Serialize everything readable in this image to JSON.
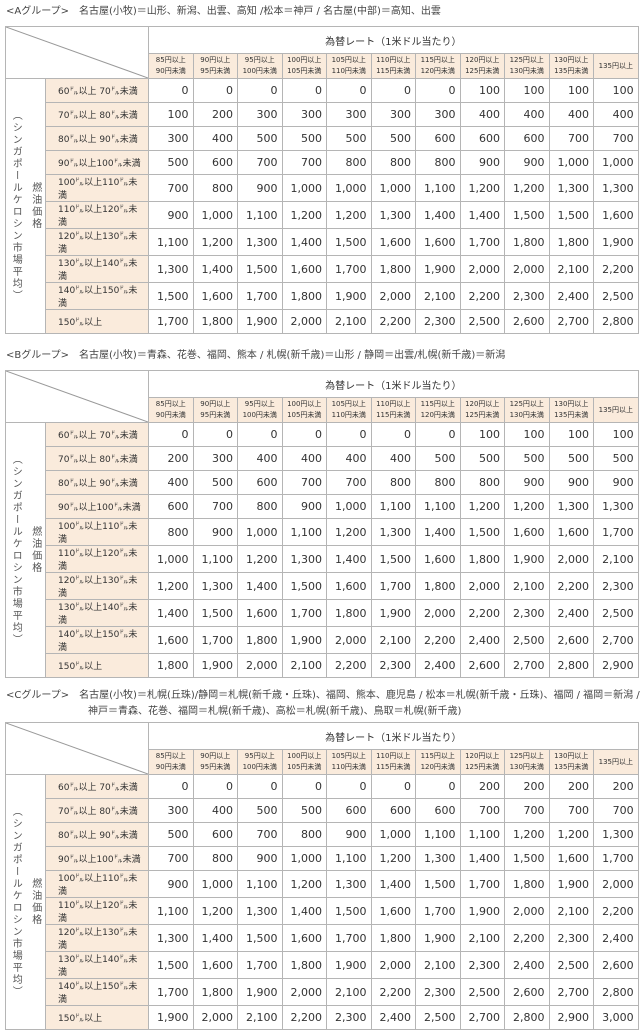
{
  "common": {
    "rate_title": "為替レート（1米ドル当たり）",
    "side_label_outer": "（シンガポールケロシン市場平均）",
    "side_label_inner": "燃油価格",
    "rate_headers": [
      [
        "85円以上",
        "90円未満"
      ],
      [
        "90円以上",
        "95円未満"
      ],
      [
        "95円以上",
        "100円未満"
      ],
      [
        "100円以上",
        "105円未満"
      ],
      [
        "105円以上",
        "110円未満"
      ],
      [
        "110円以上",
        "115円未満"
      ],
      [
        "115円以上",
        "120円未満"
      ],
      [
        "120円以上",
        "125円未満"
      ],
      [
        "125円以上",
        "130円未満"
      ],
      [
        "130円以上",
        "135円未満"
      ],
      [
        "135円以上",
        ""
      ]
    ],
    "row_labels": [
      "60㌦以上 70㌦未満",
      "70㌦以上 80㌦未満",
      "80㌦以上 90㌦未満",
      "90㌦以上100㌦未満",
      "100㌦以上110㌦未満",
      "110㌦以上120㌦未満",
      "120㌦以上130㌦未満",
      "130㌦以上140㌦未満",
      "140㌦以上150㌦未満",
      "150㌦以上"
    ]
  },
  "groups": [
    {
      "name": "<Aグループ>",
      "routes": [
        "名古屋(小牧)＝山形、新潟、出雲、高知 /松本＝神戸 / 名古屋(中部)＝高知、出雲"
      ],
      "rows": [
        [
          "0",
          "0",
          "0",
          "0",
          "0",
          "0",
          "0",
          "100",
          "100",
          "100",
          "100"
        ],
        [
          "100",
          "200",
          "300",
          "300",
          "300",
          "300",
          "300",
          "400",
          "400",
          "400",
          "400"
        ],
        [
          "300",
          "400",
          "500",
          "500",
          "500",
          "500",
          "600",
          "600",
          "600",
          "700",
          "700"
        ],
        [
          "500",
          "600",
          "700",
          "700",
          "800",
          "800",
          "800",
          "900",
          "900",
          "1,000",
          "1,000"
        ],
        [
          "700",
          "800",
          "900",
          "1,000",
          "1,000",
          "1,000",
          "1,100",
          "1,200",
          "1,200",
          "1,300",
          "1,300"
        ],
        [
          "900",
          "1,000",
          "1,100",
          "1,200",
          "1,200",
          "1,300",
          "1,400",
          "1,400",
          "1,500",
          "1,500",
          "1,600"
        ],
        [
          "1,100",
          "1,200",
          "1,300",
          "1,400",
          "1,500",
          "1,600",
          "1,600",
          "1,700",
          "1,800",
          "1,800",
          "1,900"
        ],
        [
          "1,300",
          "1,400",
          "1,500",
          "1,600",
          "1,700",
          "1,800",
          "1,900",
          "2,000",
          "2,000",
          "2,100",
          "2,200"
        ],
        [
          "1,500",
          "1,600",
          "1,700",
          "1,800",
          "1,900",
          "2,000",
          "2,100",
          "2,200",
          "2,300",
          "2,400",
          "2,500"
        ],
        [
          "1,700",
          "1,800",
          "1,900",
          "2,000",
          "2,100",
          "2,200",
          "2,300",
          "2,500",
          "2,600",
          "2,700",
          "2,800"
        ]
      ]
    },
    {
      "name": "<Bグループ>",
      "routes": [
        "名古屋(小牧)＝青森、花巻、福岡、熊本 / 札幌(新千歳)＝山形 / 静岡＝出雲/札幌(新千歳)＝新潟"
      ],
      "rows": [
        [
          "0",
          "0",
          "0",
          "0",
          "0",
          "0",
          "0",
          "100",
          "100",
          "100",
          "100"
        ],
        [
          "200",
          "300",
          "400",
          "400",
          "400",
          "400",
          "500",
          "500",
          "500",
          "500",
          "500"
        ],
        [
          "400",
          "500",
          "600",
          "700",
          "700",
          "800",
          "800",
          "800",
          "900",
          "900",
          "900"
        ],
        [
          "600",
          "700",
          "800",
          "900",
          "1,000",
          "1,100",
          "1,100",
          "1,200",
          "1,200",
          "1,300",
          "1,300"
        ],
        [
          "800",
          "900",
          "1,000",
          "1,100",
          "1,200",
          "1,300",
          "1,400",
          "1,500",
          "1,600",
          "1,600",
          "1,700"
        ],
        [
          "1,000",
          "1,100",
          "1,200",
          "1,300",
          "1,400",
          "1,500",
          "1,600",
          "1,800",
          "1,900",
          "2,000",
          "2,100"
        ],
        [
          "1,200",
          "1,300",
          "1,400",
          "1,500",
          "1,600",
          "1,700",
          "1,800",
          "2,000",
          "2,100",
          "2,200",
          "2,300"
        ],
        [
          "1,400",
          "1,500",
          "1,600",
          "1,700",
          "1,800",
          "1,900",
          "2,000",
          "2,200",
          "2,300",
          "2,400",
          "2,500"
        ],
        [
          "1,600",
          "1,700",
          "1,800",
          "1,900",
          "2,000",
          "2,100",
          "2,200",
          "2,400",
          "2,500",
          "2,600",
          "2,700"
        ],
        [
          "1,800",
          "1,900",
          "2,000",
          "2,100",
          "2,200",
          "2,300",
          "2,400",
          "2,600",
          "2,700",
          "2,800",
          "2,900"
        ]
      ]
    },
    {
      "name": "<Cグループ>",
      "routes": [
        "名古屋(小牧)＝札幌(丘珠)/静岡＝札幌(新千歳・丘珠)、福岡、熊本、鹿児島 / 松本＝札幌(新千歳・丘珠)、福岡 / 福岡＝新潟 /",
        "神戸＝青森、花巻、福岡＝札幌(新千歳)、高松＝札幌(新千歳)、鳥取＝札幌(新千歳)"
      ],
      "rows": [
        [
          "0",
          "0",
          "0",
          "0",
          "0",
          "0",
          "0",
          "200",
          "200",
          "200",
          "200"
        ],
        [
          "300",
          "400",
          "500",
          "500",
          "600",
          "600",
          "600",
          "700",
          "700",
          "700",
          "700"
        ],
        [
          "500",
          "600",
          "700",
          "800",
          "900",
          "1,000",
          "1,100",
          "1,100",
          "1,200",
          "1,200",
          "1,300"
        ],
        [
          "700",
          "800",
          "900",
          "1,000",
          "1,100",
          "1,200",
          "1,300",
          "1,400",
          "1,500",
          "1,600",
          "1,700"
        ],
        [
          "900",
          "1,000",
          "1,100",
          "1,200",
          "1,300",
          "1,400",
          "1,500",
          "1,700",
          "1,800",
          "1,900",
          "2,000"
        ],
        [
          "1,100",
          "1,200",
          "1,300",
          "1,400",
          "1,500",
          "1,600",
          "1,700",
          "1,900",
          "2,000",
          "2,100",
          "2,200"
        ],
        [
          "1,300",
          "1,400",
          "1,500",
          "1,600",
          "1,700",
          "1,800",
          "1,900",
          "2,100",
          "2,200",
          "2,300",
          "2,400"
        ],
        [
          "1,500",
          "1,600",
          "1,700",
          "1,800",
          "1,900",
          "2,000",
          "2,100",
          "2,300",
          "2,400",
          "2,500",
          "2,600"
        ],
        [
          "1,700",
          "1,800",
          "1,900",
          "2,000",
          "2,100",
          "2,200",
          "2,300",
          "2,500",
          "2,600",
          "2,700",
          "2,800"
        ],
        [
          "1,900",
          "2,000",
          "2,100",
          "2,200",
          "2,300",
          "2,400",
          "2,500",
          "2,700",
          "2,800",
          "2,900",
          "3,000"
        ]
      ]
    }
  ]
}
